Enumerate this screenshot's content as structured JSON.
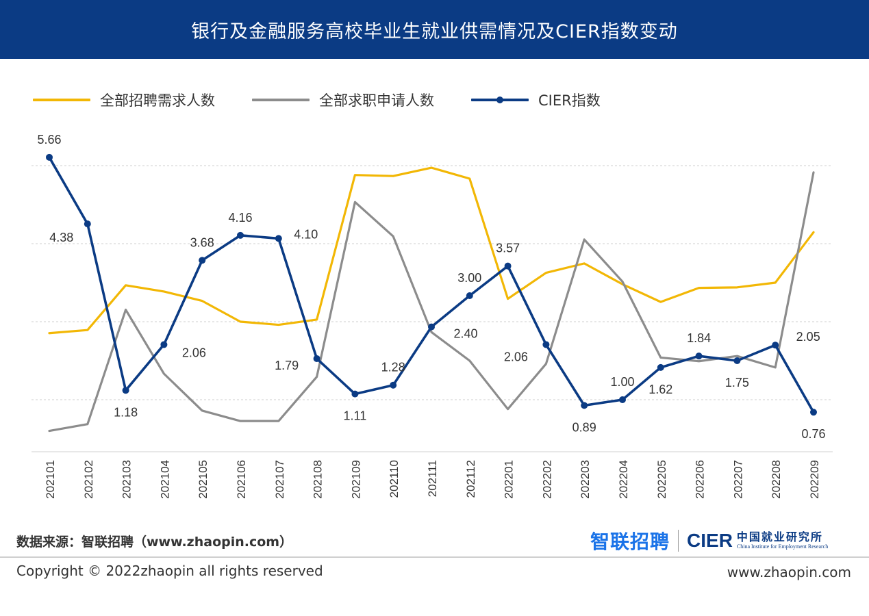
{
  "header": {
    "title": "银行及金融服务高校毕业生就业供需情况及CIER指数变动"
  },
  "colors": {
    "header_bg": "#0b3b84",
    "demand": "#f2b705",
    "applicants": "#8c8c8c",
    "cier": "#0b3b84"
  },
  "legend": [
    {
      "label": "全部招聘需求人数",
      "color": "#f2b705",
      "marker": false
    },
    {
      "label": "全部求职申请人数",
      "color": "#8c8c8c",
      "marker": false
    },
    {
      "label": "CIER指数",
      "color": "#0b3b84",
      "marker": true
    }
  ],
  "chart_data": {
    "type": "line",
    "title": "银行及金融服务高校毕业生就业供需情况及CIER指数变动",
    "xlabel": "",
    "ylabel": "",
    "ylim": [
      0,
      6
    ],
    "grid": true,
    "legend_position": "top-left",
    "categories": [
      "202101",
      "202102",
      "202103",
      "202104",
      "202105",
      "202106",
      "202107",
      "202108",
      "202109",
      "202110",
      "202111",
      "202112",
      "202201",
      "202202",
      "202203",
      "202204",
      "202205",
      "202206",
      "202207",
      "202208",
      "202209"
    ],
    "series": [
      {
        "name": "全部招聘需求人数",
        "labeled": false,
        "values": [
          2.28,
          2.34,
          3.2,
          3.08,
          2.9,
          2.5,
          2.44,
          2.54,
          5.32,
          5.3,
          5.46,
          5.25,
          2.94,
          3.44,
          3.62,
          3.22,
          2.88,
          3.15,
          3.16,
          3.25,
          4.22
        ]
      },
      {
        "name": "全部求職申请人数",
        "labeled": false,
        "values": [
          0.4,
          0.53,
          2.73,
          1.5,
          0.79,
          0.59,
          0.59,
          1.44,
          4.8,
          4.14,
          2.3,
          1.75,
          0.82,
          1.69,
          4.08,
          3.27,
          1.81,
          1.74,
          1.84,
          1.62,
          5.37
        ]
      },
      {
        "name": "CIER指数",
        "labeled": true,
        "values": [
          5.66,
          4.38,
          1.18,
          2.06,
          3.68,
          4.16,
          4.1,
          1.79,
          1.11,
          1.28,
          2.4,
          3.0,
          3.57,
          2.06,
          0.89,
          1.0,
          1.62,
          1.84,
          1.75,
          2.05,
          0.76
        ],
        "labels": [
          "5.66",
          "4.38",
          "1.18",
          "2.06",
          "3.68",
          "4.16",
          "4.10",
          "1.79",
          "1.11",
          "1.28",
          "2.40",
          "3.00",
          "3.57",
          "2.06",
          "0.89",
          "1.00",
          "1.62",
          "1.84",
          "1.75",
          "2.05",
          "0.76"
        ]
      }
    ]
  },
  "footer": {
    "source": "数据来源：智联招聘（www.zhaopin.com）",
    "logo_zhaopin": "智联招聘",
    "logo_cier": "CIER",
    "logo_cier_cn": "中国就业研究所",
    "logo_cier_en": "China Institute for Employment Research",
    "copyright": "Copyright ©  2022zhaopin all rights reserved",
    "website": "www.zhaopin.com"
  }
}
